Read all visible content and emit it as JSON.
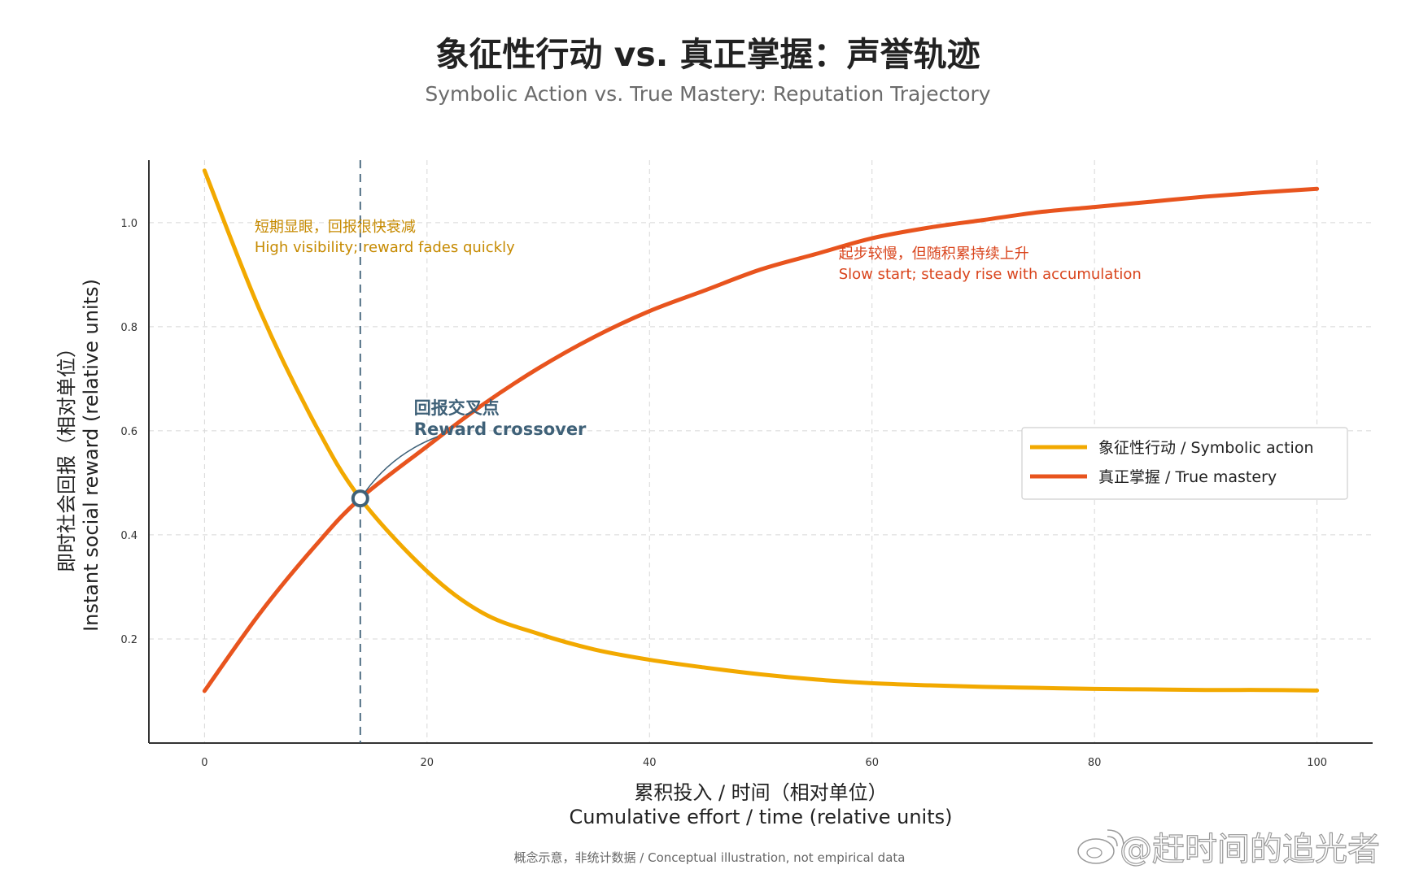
{
  "title": "象征性行动 vs. 真正掌握：声誉轨迹",
  "subtitle": "Symbolic Action vs. True Mastery: Reputation Trajectory",
  "footnote": "概念示意，非统计数据 / Conceptual illustration, not empirical data",
  "watermark": "@赶时间的追光者",
  "colors": {
    "symbolic": "#f2a900",
    "mastery": "#e8541e",
    "crossover": "#3f6178"
  },
  "chart_data": {
    "type": "line",
    "xlabel_cn": "累积投入 / 时间（相对单位）",
    "xlabel_en": "Cumulative effort / time (relative units)",
    "ylabel_cn": "即时社会回报（相对单位）",
    "ylabel_en": "Instant social reward (relative units)",
    "xlim": [
      -5,
      105
    ],
    "ylim": [
      0.0,
      1.12
    ],
    "xticks": [
      0,
      20,
      40,
      60,
      80,
      100
    ],
    "xtick_labels": [
      "0",
      "20",
      "40",
      "60",
      "80",
      "100"
    ],
    "yticks": [
      0.2,
      0.4,
      0.6,
      0.8,
      1.0
    ],
    "ytick_labels": [
      "0.2",
      "0.4",
      "0.6",
      "0.8",
      "1.0"
    ],
    "grid": true,
    "legend_position": "center-right",
    "series": [
      {
        "name": "象征性行动 / Symbolic action",
        "x": [
          0,
          5,
          10,
          14,
          20,
          25,
          30,
          35,
          40,
          45,
          50,
          55,
          60,
          65,
          70,
          75,
          80,
          85,
          90,
          95,
          100
        ],
        "y": [
          1.1,
          0.83,
          0.61,
          0.47,
          0.33,
          0.25,
          0.21,
          0.18,
          0.16,
          0.145,
          0.132,
          0.122,
          0.115,
          0.111,
          0.108,
          0.106,
          0.104,
          0.103,
          0.102,
          0.102,
          0.101
        ]
      },
      {
        "name": "真正掌握 / True mastery",
        "x": [
          0,
          5,
          10,
          14,
          20,
          25,
          30,
          35,
          40,
          45,
          50,
          55,
          60,
          65,
          70,
          75,
          80,
          85,
          90,
          95,
          100
        ],
        "y": [
          0.1,
          0.25,
          0.38,
          0.47,
          0.57,
          0.65,
          0.72,
          0.78,
          0.83,
          0.87,
          0.91,
          0.94,
          0.97,
          0.99,
          1.005,
          1.02,
          1.03,
          1.04,
          1.05,
          1.058,
          1.065
        ]
      }
    ],
    "crossover": {
      "x": 14,
      "y": 0.47,
      "label_cn": "回报交叉点",
      "label_en": "Reward crossover"
    },
    "annotations": [
      {
        "series": "symbolic",
        "text_cn": "短期显眼，回报很快衰减",
        "text_en": "High visibility; reward fades quickly",
        "x": 4.5,
        "y": 0.99
      },
      {
        "series": "mastery",
        "text_cn": "起步较慢，但随积累持续上升",
        "text_en": "Slow start; steady rise with accumulation",
        "x": 57,
        "y": 0.94
      }
    ]
  }
}
